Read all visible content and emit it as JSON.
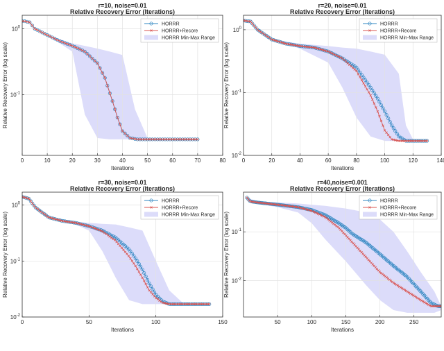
{
  "colors": {
    "horrr": "#2e86c1",
    "recore": "#d9534f",
    "band": "#dcdcfa",
    "grid": "#e2e2e2",
    "axis": "#333333"
  },
  "chart_data": [
    {
      "type": "line",
      "title_line1": "r=10, noise=0.01",
      "title_line2": "Relative Recovery Error (Iterations)",
      "xlabel": "Iterations",
      "ylabel": "Relative Recovery Error (log scale)",
      "xlim": [
        0,
        80
      ],
      "ylim": [
        0.012,
        1.6
      ],
      "yscale": "log",
      "xticks": [
        0,
        10,
        20,
        30,
        40,
        50,
        60,
        70,
        80
      ],
      "xtick_labels": [
        "0",
        "10",
        "20",
        "30",
        "40",
        "50",
        "60",
        "70",
        "80"
      ],
      "yticks": [
        0.1,
        1
      ],
      "ytick_labels": [
        "10^-1",
        "10^0"
      ],
      "legend_position": "top-right",
      "legend": [
        "HORRR",
        "HORRR+Recore",
        "HORRR Min-Max Range"
      ],
      "n_points": 71,
      "series": [
        {
          "name": "HORRR",
          "x": [
            0,
            1,
            3,
            5,
            10,
            15,
            20,
            25,
            30,
            33,
            36,
            38,
            40,
            43,
            46,
            50,
            60,
            70
          ],
          "y": [
            1.3,
            1.3,
            1.25,
            1.0,
            0.8,
            0.65,
            0.55,
            0.45,
            0.3,
            0.18,
            0.08,
            0.045,
            0.028,
            0.022,
            0.021,
            0.021,
            0.021,
            0.021
          ]
        },
        {
          "name": "HORRR+Recore",
          "x": [
            0,
            1,
            3,
            5,
            10,
            15,
            20,
            25,
            30,
            33,
            36,
            38,
            40,
            43,
            46,
            50,
            60,
            70
          ],
          "y": [
            1.3,
            1.3,
            1.25,
            1.0,
            0.8,
            0.65,
            0.55,
            0.45,
            0.3,
            0.18,
            0.08,
            0.045,
            0.028,
            0.022,
            0.021,
            0.021,
            0.021,
            0.021
          ]
        }
      ],
      "band": {
        "x": [
          0,
          10,
          20,
          25,
          30,
          35,
          40,
          45,
          50,
          60,
          70
        ],
        "lo": [
          1.3,
          0.8,
          0.45,
          0.05,
          0.022,
          0.021,
          0.021,
          0.021,
          0.021,
          0.021,
          0.021
        ],
        "hi": [
          1.3,
          0.8,
          0.6,
          0.55,
          0.5,
          0.45,
          0.4,
          0.06,
          0.022,
          0.021,
          0.021
        ]
      }
    },
    {
      "type": "line",
      "title_line1": "r=20, noise=0.01",
      "title_line2": "Relative Recovery Error (Iterations)",
      "xlabel": "Iterations",
      "ylabel": "Relative Recovery Error (log scale)",
      "xlim": [
        0,
        140
      ],
      "ylim": [
        0.01,
        1.7
      ],
      "yscale": "log",
      "xticks": [
        0,
        20,
        40,
        60,
        80,
        100,
        120,
        140
      ],
      "xtick_labels": [
        "0",
        "20",
        "40",
        "60",
        "80",
        "100",
        "120",
        "140"
      ],
      "yticks": [
        0.01,
        0.1,
        1
      ],
      "ytick_labels": [
        "10^-2",
        "10^-1",
        "10^0"
      ],
      "legend_position": "top-right",
      "legend": [
        "HORRR",
        "HORRR+Recore",
        "HORRR Min-Max Range"
      ],
      "n_points": 105,
      "series": [
        {
          "name": "HORRR",
          "x": [
            0,
            5,
            10,
            20,
            30,
            40,
            50,
            60,
            70,
            80,
            90,
            95,
            100,
            105,
            110,
            115,
            120,
            130
          ],
          "y": [
            1.4,
            1.35,
            1.0,
            0.7,
            0.6,
            0.55,
            0.52,
            0.45,
            0.35,
            0.25,
            0.12,
            0.08,
            0.05,
            0.03,
            0.02,
            0.017,
            0.017,
            0.017
          ]
        },
        {
          "name": "HORRR+Recore",
          "x": [
            0,
            5,
            10,
            20,
            30,
            40,
            50,
            60,
            70,
            80,
            90,
            95,
            100,
            105,
            110,
            115,
            120,
            130
          ],
          "y": [
            1.4,
            1.35,
            1.0,
            0.7,
            0.6,
            0.55,
            0.52,
            0.45,
            0.35,
            0.22,
            0.09,
            0.05,
            0.025,
            0.018,
            0.017,
            0.017,
            0.017,
            0.017
          ]
        }
      ],
      "band": {
        "x": [
          0,
          10,
          20,
          40,
          60,
          70,
          80,
          90,
          100,
          110,
          115,
          120,
          130
        ],
        "lo": [
          1.4,
          1.0,
          0.7,
          0.5,
          0.3,
          0.12,
          0.04,
          0.02,
          0.017,
          0.017,
          0.017,
          0.017,
          0.017
        ],
        "hi": [
          1.4,
          1.0,
          0.7,
          0.6,
          0.55,
          0.52,
          0.5,
          0.45,
          0.4,
          0.2,
          0.03,
          0.018,
          0.017
        ]
      }
    },
    {
      "type": "line",
      "title_line1": "r=30, noise=0.01",
      "title_line2": "Relative Recovery Error (Iterations)",
      "xlabel": "Iterations",
      "ylabel": "Relative Recovery Error (log scale)",
      "xlim": [
        0,
        150
      ],
      "ylim": [
        0.01,
        1.7
      ],
      "yscale": "log",
      "xticks": [
        0,
        50,
        100,
        150
      ],
      "xtick_labels": [
        "0",
        "50",
        "100",
        "150"
      ],
      "yticks": [
        0.01,
        0.1,
        1
      ],
      "ytick_labels": [
        "10^-2",
        "10^-1",
        "10^0"
      ],
      "legend_position": "top-right",
      "legend": [
        "HORRR",
        "HORRR+Recore",
        "HORRR Min-Max Range"
      ],
      "n_points": 110,
      "series": [
        {
          "name": "HORRR",
          "x": [
            0,
            5,
            10,
            20,
            30,
            40,
            50,
            60,
            70,
            80,
            85,
            90,
            95,
            100,
            105,
            110,
            120,
            140
          ],
          "y": [
            1.4,
            1.3,
            0.9,
            0.6,
            0.52,
            0.48,
            0.42,
            0.35,
            0.26,
            0.16,
            0.11,
            0.07,
            0.04,
            0.025,
            0.019,
            0.017,
            0.017,
            0.017
          ]
        },
        {
          "name": "HORRR+Recore",
          "x": [
            0,
            5,
            10,
            20,
            30,
            40,
            50,
            60,
            70,
            80,
            85,
            90,
            95,
            100,
            105,
            110,
            120,
            140
          ],
          "y": [
            1.4,
            1.3,
            0.9,
            0.6,
            0.52,
            0.48,
            0.42,
            0.34,
            0.23,
            0.12,
            0.08,
            0.05,
            0.03,
            0.022,
            0.018,
            0.017,
            0.017,
            0.017
          ]
        }
      ],
      "band": {
        "x": [
          0,
          10,
          20,
          40,
          50,
          60,
          70,
          80,
          90,
          100,
          110,
          120,
          140
        ],
        "lo": [
          1.4,
          0.9,
          0.6,
          0.45,
          0.35,
          0.15,
          0.05,
          0.02,
          0.017,
          0.017,
          0.017,
          0.017,
          0.017
        ],
        "hi": [
          1.4,
          0.9,
          0.6,
          0.5,
          0.48,
          0.46,
          0.45,
          0.4,
          0.35,
          0.1,
          0.03,
          0.018,
          0.017
        ]
      }
    },
    {
      "type": "line",
      "title_line1": "r=40,noise=0.001",
      "title_line2": "Relative Recovery Error (Iterations)",
      "xlabel": "Iterations",
      "ylabel": "Relative Recovery Error (log scale)",
      "xlim": [
        0,
        290
      ],
      "ylim": [
        0.0018,
        0.65
      ],
      "yscale": "log",
      "xticks": [
        50,
        100,
        150,
        200,
        250
      ],
      "xtick_labels": [
        "50",
        "100",
        "150",
        "200",
        "250"
      ],
      "yticks": [
        0.01,
        0.1
      ],
      "ytick_labels": [
        "10^-2",
        "10^-1"
      ],
      "legend_position": "top-right",
      "legend": [
        "HORRR",
        "HORRR+Recore",
        "HORRR Min-Max Range"
      ],
      "n_points": 140,
      "series": [
        {
          "name": "HORRR",
          "x": [
            5,
            10,
            20,
            50,
            80,
            100,
            120,
            140,
            150,
            160,
            180,
            200,
            220,
            240,
            260,
            275,
            285,
            290
          ],
          "y": [
            0.5,
            0.42,
            0.4,
            0.36,
            0.32,
            0.28,
            0.22,
            0.15,
            0.12,
            0.09,
            0.06,
            0.035,
            0.02,
            0.012,
            0.006,
            0.0035,
            0.003,
            0.003
          ]
        },
        {
          "name": "HORRR+Recore",
          "x": [
            5,
            10,
            20,
            50,
            80,
            100,
            120,
            140,
            150,
            160,
            180,
            200,
            220,
            240,
            260,
            275,
            285,
            290
          ],
          "y": [
            0.5,
            0.42,
            0.4,
            0.36,
            0.32,
            0.27,
            0.2,
            0.12,
            0.085,
            0.06,
            0.03,
            0.015,
            0.009,
            0.006,
            0.004,
            0.003,
            0.003,
            0.003
          ]
        }
      ],
      "band": {
        "x": [
          5,
          20,
          50,
          80,
          100,
          120,
          150,
          180,
          200,
          220,
          240,
          260,
          280,
          290
        ],
        "lo": [
          0.5,
          0.38,
          0.32,
          0.25,
          0.15,
          0.07,
          0.025,
          0.008,
          0.004,
          0.0025,
          0.0022,
          0.0022,
          0.0022,
          0.0025
        ],
        "hi": [
          0.5,
          0.42,
          0.4,
          0.38,
          0.36,
          0.34,
          0.3,
          0.25,
          0.18,
          0.1,
          0.04,
          0.015,
          0.006,
          0.003
        ]
      }
    }
  ]
}
